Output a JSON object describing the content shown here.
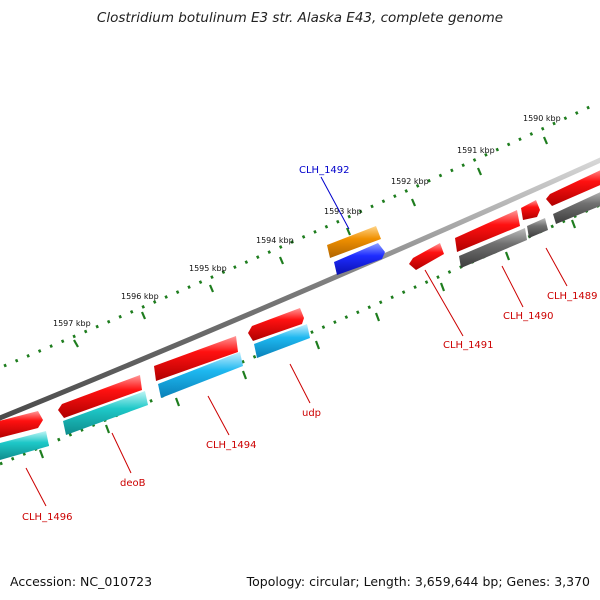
{
  "title": "Clostridium botulinum E3 str. Alaska E43, complete genome",
  "footer": {
    "accession": "Accession: NC_010723",
    "summary": "Topology: circular; Length: 3,659,644 bp; Genes: 3,370"
  },
  "kbp_labels": [
    "1590 kbp",
    "1591 kbp",
    "1592 kbp",
    "1593 kbp",
    "1594 kbp",
    "1595 kbp",
    "1596 kbp",
    "1597 kbp"
  ],
  "gene_labels": [
    "CLH_1492",
    "CLH_1489",
    "CLH_1490",
    "CLH_1491",
    "udp",
    "CLH_1494",
    "deoB",
    "CLH_1496"
  ],
  "colors": {
    "backbone": "#7a7a7a",
    "tick": "#1e7d1e",
    "red_feature": "#ee0000",
    "cyan_feature": "#1ec8c8",
    "blue_feature": "#1e46ff",
    "orange_feature": "#f09000",
    "gray_feature": "#666666",
    "label_red": "#cc0000",
    "label_blue": "#0000cc"
  }
}
